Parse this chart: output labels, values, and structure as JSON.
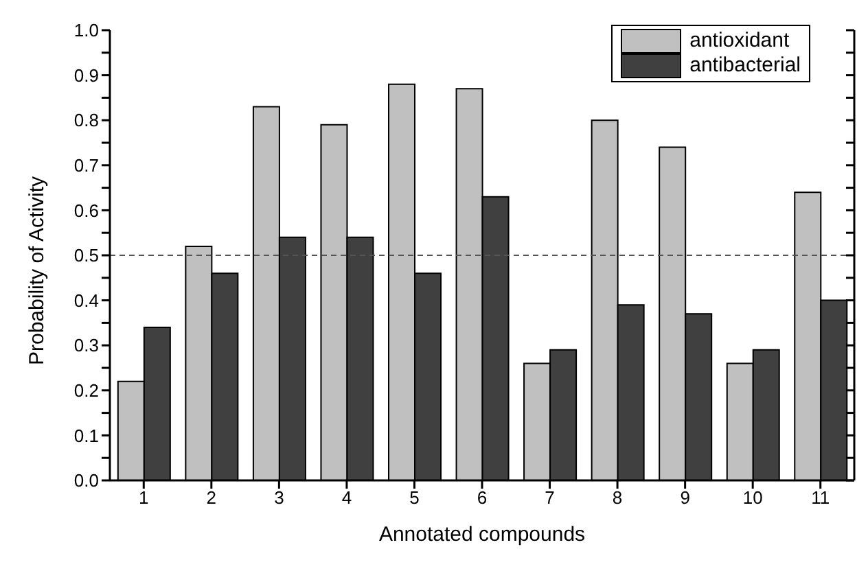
{
  "chart_data": {
    "type": "bar",
    "xlabel": "Annotated compounds",
    "ylabel": "Probability of Activity",
    "categories": [
      "1",
      "2",
      "3",
      "4",
      "5",
      "6",
      "7",
      "8",
      "9",
      "10",
      "11"
    ],
    "series": [
      {
        "name": "antioxidant",
        "color": "#c0c0c0",
        "values": [
          0.22,
          0.52,
          0.83,
          0.79,
          0.88,
          0.87,
          0.26,
          0.8,
          0.74,
          0.26,
          0.64
        ]
      },
      {
        "name": "antibacterial",
        "color": "#404040",
        "values": [
          0.34,
          0.46,
          0.54,
          0.54,
          0.46,
          0.63,
          0.29,
          0.39,
          0.37,
          0.29,
          0.4
        ]
      }
    ],
    "ylim": [
      0,
      1
    ],
    "yticks": [
      {
        "value": 0,
        "label": "0.0"
      },
      {
        "value": 0.05,
        "label": null
      },
      {
        "value": 0.1,
        "label": "0.1"
      },
      {
        "value": 0.15,
        "label": null
      },
      {
        "value": 0.2,
        "label": "0.2"
      },
      {
        "value": 0.25,
        "label": null
      },
      {
        "value": 0.3,
        "label": "0.3"
      },
      {
        "value": 0.35,
        "label": null
      },
      {
        "value": 0.4,
        "label": "0.4"
      },
      {
        "value": 0.45,
        "label": null
      },
      {
        "value": 0.5,
        "label": "0.5"
      },
      {
        "value": 0.55,
        "label": null
      },
      {
        "value": 0.6,
        "label": "0.6"
      },
      {
        "value": 0.65,
        "label": null
      },
      {
        "value": 0.7,
        "label": "0.7"
      },
      {
        "value": 0.75,
        "label": null
      },
      {
        "value": 0.8,
        "label": "0.8"
      },
      {
        "value": 0.85,
        "label": null
      },
      {
        "value": 0.9,
        "label": "0.9"
      },
      {
        "value": 0.95,
        "label": null
      },
      {
        "value": 1,
        "label": "1.0"
      }
    ],
    "ref_lines": [
      {
        "axis": "y",
        "value": 0.5,
        "label": null,
        "color": "#555555",
        "line_style": "dashed"
      }
    ],
    "grid": false,
    "legend": "top right"
  }
}
